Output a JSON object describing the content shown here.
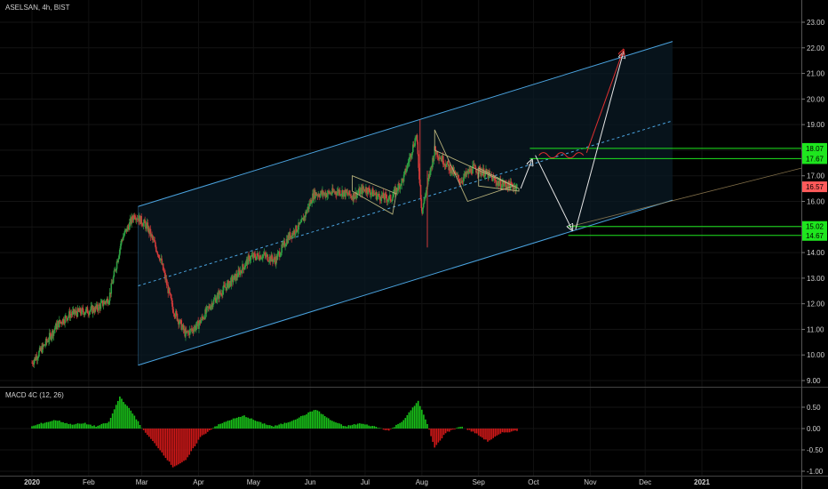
{
  "chart_data": [
    {
      "type": "candlestick",
      "title": "ASELSAN, 4h, BIST",
      "y_ticks": [
        "23.00",
        "22.00",
        "21.00",
        "20.00",
        "19.00",
        "18.00",
        "17.00",
        "16.00",
        "15.00",
        "14.00",
        "13.00",
        "12.00",
        "11.00",
        "10.00",
        "9.00"
      ],
      "x_ticks": [
        "2020",
        "Feb",
        "Mar",
        "Apr",
        "May",
        "Jun",
        "Jul",
        "Aug",
        "Sep",
        "Oct",
        "Nov",
        "Dec",
        "2021"
      ],
      "ylim": [
        8.7,
        23.5
      ],
      "series": [
        {
          "x": [
            "2020-01-01",
            "2020-01-08",
            "2020-01-15",
            "2020-01-22",
            "2020-01-29",
            "2020-02-05",
            "2020-02-12",
            "2020-02-19",
            "2020-02-26",
            "2020-03-04",
            "2020-03-11",
            "2020-03-18",
            "2020-03-25",
            "2020-04-01",
            "2020-04-08",
            "2020-04-15",
            "2020-04-22",
            "2020-04-29",
            "2020-05-06",
            "2020-05-13",
            "2020-05-20",
            "2020-05-27",
            "2020-06-03",
            "2020-06-10",
            "2020-06-17",
            "2020-06-24",
            "2020-07-01",
            "2020-07-08",
            "2020-07-15",
            "2020-07-22",
            "2020-07-29",
            "2020-08-01",
            "2020-08-08",
            "2020-08-15",
            "2020-08-22",
            "2020-08-29",
            "2020-09-05",
            "2020-09-12",
            "2020-09-19"
          ],
          "values": [
            9.7,
            10.4,
            11.2,
            11.6,
            11.7,
            11.8,
            12.2,
            14.5,
            15.5,
            15.0,
            13.8,
            11.8,
            10.8,
            11.2,
            12.0,
            12.6,
            13.1,
            13.8,
            13.9,
            13.7,
            14.6,
            15.1,
            16.3,
            16.3,
            16.4,
            16.2,
            16.5,
            16.2,
            16.1,
            16.9,
            18.6,
            15.6,
            18.0,
            17.4,
            16.8,
            17.3,
            17.1,
            16.7,
            16.6
          ]
        }
      ],
      "annotations": {
        "price_labels": [
          {
            "text": "18.07",
            "value": 18.07,
            "color": "#1ee61e"
          },
          {
            "text": "17.67",
            "value": 17.67,
            "color": "#1ee61e"
          },
          {
            "text": "16.57",
            "value": 16.57,
            "color": "#ff5a5a"
          },
          {
            "text": "15.02",
            "value": 15.02,
            "color": "#1ee61e"
          },
          {
            "text": "14.67",
            "value": 14.67,
            "color": "#1ee61e"
          }
        ],
        "channel_color": "#4aa3df",
        "horizontal_levels": [
          {
            "value": 18.07,
            "from": "2020-09-29",
            "to": "2020-12-31"
          },
          {
            "value": 17.67,
            "from": "2020-09-29",
            "to": "2020-12-31"
          },
          {
            "value": 15.02,
            "from": "2020-10-20",
            "to": "2020-12-31"
          },
          {
            "value": 14.67,
            "from": "2020-10-20",
            "to": "2020-12-31"
          }
        ]
      }
    },
    {
      "type": "bar",
      "title": "MACD 4C (12, 26)",
      "y_ticks": [
        "0.50",
        "0.00",
        "-0.50",
        "-1.00"
      ],
      "ylim": [
        -1.05,
        0.9
      ],
      "positive_color": "#19c119",
      "negative_color": "#d01818"
    }
  ]
}
